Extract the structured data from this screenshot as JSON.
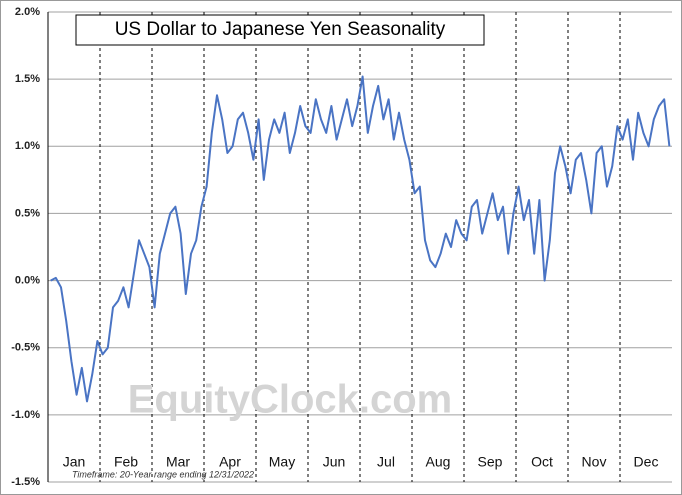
{
  "chart_data": {
    "type": "line",
    "title": "US Dollar to Japanese Yen Seasonality",
    "footnote": "Timeframe: 20-Year range ending 12/31/2022",
    "watermark": "EquityClock.com",
    "months": [
      "Jan",
      "Feb",
      "Mar",
      "Apr",
      "May",
      "Jun",
      "Jul",
      "Aug",
      "Sep",
      "Oct",
      "Nov",
      "Dec"
    ],
    "color": "#4a74c4",
    "values": [
      0,
      0.02,
      -0.05,
      -0.3,
      -0.6,
      -0.85,
      -0.65,
      -0.9,
      -0.7,
      -0.45,
      -0.55,
      -0.5,
      -0.2,
      -0.15,
      -0.05,
      -0.2,
      0.05,
      0.3,
      0.2,
      0.1,
      -0.2,
      0.2,
      0.35,
      0.5,
      0.55,
      0.35,
      -0.1,
      0.2,
      0.3,
      0.55,
      0.7,
      1.1,
      1.38,
      1.2,
      0.95,
      1.0,
      1.2,
      1.25,
      1.1,
      0.9,
      1.2,
      0.75,
      1.05,
      1.2,
      1.1,
      1.25,
      0.95,
      1.1,
      1.3,
      1.15,
      1.1,
      1.35,
      1.2,
      1.1,
      1.3,
      1.05,
      1.2,
      1.35,
      1.15,
      1.3,
      1.52,
      1.1,
      1.3,
      1.45,
      1.2,
      1.35,
      1.05,
      1.25,
      1.05,
      0.9,
      0.65,
      0.7,
      0.3,
      0.15,
      0.1,
      0.2,
      0.35,
      0.25,
      0.45,
      0.35,
      0.3,
      0.55,
      0.6,
      0.35,
      0.5,
      0.65,
      0.45,
      0.55,
      0.2,
      0.5,
      0.7,
      0.45,
      0.6,
      0.2,
      0.6,
      0.0,
      0.3,
      0.8,
      1.0,
      0.85,
      0.65,
      0.9,
      0.95,
      0.75,
      0.5,
      0.95,
      1.0,
      0.7,
      0.85,
      1.15,
      1.05,
      1.2,
      0.9,
      1.25,
      1.1,
      1.0,
      1.2,
      1.3,
      1.35,
      1.0
    ],
    "ylim": [
      -1.5,
      2.0
    ],
    "yticks": [
      {
        "value": 2.0,
        "label": "2.0%"
      },
      {
        "value": 1.5,
        "label": "1.5%"
      },
      {
        "value": 1.0,
        "label": "1.0%"
      },
      {
        "value": 0.5,
        "label": "0.5%"
      },
      {
        "value": 0.0,
        "label": "0.0%"
      },
      {
        "value": -0.5,
        "label": "-0.5%"
      },
      {
        "value": -1.0,
        "label": "-1.0%"
      },
      {
        "value": -1.5,
        "label": "-1.5%"
      }
    ],
    "grid": true
  }
}
